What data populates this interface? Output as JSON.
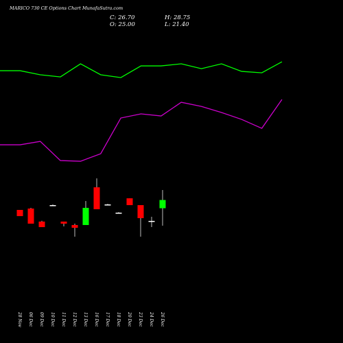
{
  "chart_data": [
    {
      "type": "candlestick",
      "title": "MARICO 730  CE Options  Chart MunafaSutra.com",
      "summary": [
        "C: 26.70",
        "H: 28.75",
        "O: 25.00",
        "L: 21.40"
      ],
      "categories": [
        "28 Nov",
        "06 Dec",
        "09 Dec",
        "10 Dec",
        "11 Dec",
        "12 Dec",
        "13 Dec",
        "16 Dec",
        "17 Dec",
        "18 Dec",
        "20 Dec",
        "23 Dec",
        "24 Dec",
        "26 Dec"
      ],
      "open": [
        24.65,
        24.93,
        22.24,
        25.64,
        22.24,
        21.53,
        21.53,
        29.32,
        25.78,
        24.08,
        27.05,
        25.64,
        22.38,
        25.0
      ],
      "high": [
        24.65,
        25.07,
        22.4,
        25.78,
        22.24,
        21.81,
        26.49,
        31.16,
        25.92,
        24.2,
        27.05,
        25.64,
        23.23,
        28.75
      ],
      "low": [
        23.37,
        21.81,
        21.1,
        25.5,
        21.25,
        19.12,
        21.53,
        24.79,
        25.64,
        23.95,
        25.64,
        19.12,
        21.1,
        21.4
      ],
      "close": [
        23.37,
        21.81,
        21.1,
        25.64,
        21.81,
        20.96,
        25.07,
        24.79,
        25.78,
        24.08,
        25.64,
        22.95,
        22.38,
        26.7
      ],
      "up_color": "#00ff00",
      "down_color": "#ff0000",
      "wick_color": "#bbbbbb",
      "ylim": [
        0,
        68
      ]
    },
    {
      "type": "line",
      "series": [
        {
          "color": "#00ff00",
          "values": [
            53.4,
            53.4,
            52.56,
            52.12,
            54.82,
            52.56,
            51.98,
            54.39,
            54.39,
            54.82,
            53.82,
            54.82,
            53.26,
            52.97,
            55.24
          ]
        },
        {
          "color": "#cc00cc",
          "values": [
            38.1,
            38.1,
            38.81,
            34.84,
            34.7,
            36.26,
            43.63,
            44.48,
            44.05,
            46.88,
            46.03,
            44.76,
            43.34,
            41.5,
            47.45
          ]
        }
      ],
      "ylim": [
        0,
        68
      ]
    }
  ]
}
